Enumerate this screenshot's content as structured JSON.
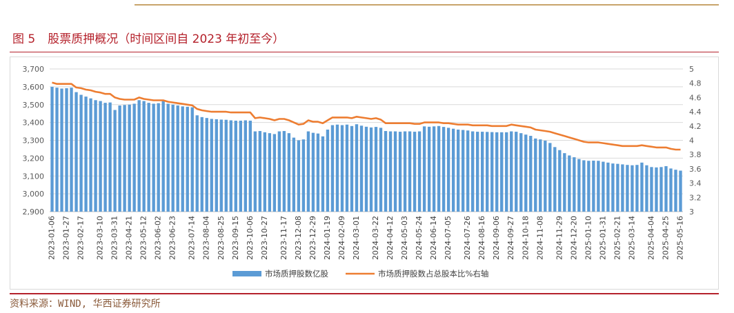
{
  "figure": {
    "number": "图 5",
    "title": "股票质押概况（时间区间自 2023 年初至今）",
    "source": "资料来源：WIND, 华西证券研究所"
  },
  "colors": {
    "bar": "#5b9bd5",
    "line": "#ed7d31",
    "title": "#b4202a",
    "rule": "#c8a46a"
  },
  "chart_data": {
    "type": "bar",
    "title": "",
    "grid": true,
    "legend_position": "bottom",
    "y_left": {
      "min": 2900,
      "max": 3700,
      "ticks": [
        "2,900",
        "3,000",
        "3,100",
        "3,200",
        "3,300",
        "3,400",
        "3,500",
        "3,600",
        "3,700"
      ]
    },
    "y_right": {
      "min": 3,
      "max": 5,
      "ticks": [
        "3",
        "3.2",
        "3.4",
        "3.6",
        "3.8",
        "4",
        "4.2",
        "4.4",
        "4.6",
        "4.8",
        "5"
      ]
    },
    "x_tick_labels": [
      "2023-01-06",
      "2023-01-27",
      "2023-02-17",
      "2023-03-10",
      "2023-03-31",
      "2023-04-21",
      "2023-05-12",
      "2023-06-02",
      "2023-06-23",
      "2023-07-14",
      "2023-08-04",
      "2023-08-25",
      "2023-09-15",
      "2023-10-06",
      "2023-10-27",
      "2023-11-17",
      "2023-12-08",
      "2023-12-29",
      "2024-01-19",
      "2024-02-09",
      "2024-03-01",
      "2024-03-22",
      "2024-04-12",
      "2024-05-03",
      "2024-05-24",
      "2024-06-14",
      "2024-07-05",
      "2024-07-26",
      "2024-08-16",
      "2024-09-06",
      "2024-09-27",
      "2024-10-18",
      "2024-11-08",
      "2024-11-29",
      "2024-12-20",
      "2025-01-10",
      "2025-01-31",
      "2025-02-21",
      "2025-03-14",
      "2025-04-04",
      "2025-04-25",
      "2025-05-16"
    ],
    "series": [
      {
        "name": "市场质押股数亿股",
        "type": "bar",
        "axis": "left",
        "values": [
          3600,
          3595,
          3590,
          3592,
          3595,
          3570,
          3555,
          3545,
          3535,
          3525,
          3520,
          3510,
          3512,
          3470,
          3495,
          3498,
          3500,
          3505,
          3525,
          3520,
          3510,
          3505,
          3508,
          3520,
          3505,
          3500,
          3495,
          3490,
          3488,
          3485,
          3440,
          3430,
          3425,
          3420,
          3418,
          3416,
          3415,
          3412,
          3410,
          3410,
          3412,
          3410,
          3350,
          3352,
          3345,
          3340,
          3335,
          3350,
          3352,
          3340,
          3315,
          3300,
          3305,
          3350,
          3342,
          3338,
          3322,
          3360,
          3385,
          3388,
          3385,
          3388,
          3380,
          3390,
          3382,
          3376,
          3372,
          3375,
          3370,
          3352,
          3350,
          3350,
          3348,
          3350,
          3350,
          3348,
          3350,
          3378,
          3376,
          3378,
          3380,
          3375,
          3370,
          3365,
          3360,
          3358,
          3355,
          3350,
          3348,
          3348,
          3347,
          3346,
          3345,
          3345,
          3345,
          3350,
          3348,
          3340,
          3332,
          3325,
          3310,
          3305,
          3298,
          3285,
          3262,
          3245,
          3228,
          3215,
          3205,
          3195,
          3188,
          3185,
          3186,
          3185,
          3180,
          3175,
          3170,
          3168,
          3165,
          3162,
          3160,
          3162,
          3175,
          3160,
          3150,
          3148,
          3150,
          3155,
          3142,
          3135,
          3130
        ]
      },
      {
        "name": "市场质押股数占总股本比%右轴",
        "type": "line",
        "axis": "right",
        "values": [
          4.81,
          4.79,
          4.79,
          4.79,
          4.79,
          4.74,
          4.73,
          4.71,
          4.7,
          4.68,
          4.67,
          4.65,
          4.65,
          4.6,
          4.58,
          4.57,
          4.57,
          4.57,
          4.6,
          4.58,
          4.57,
          4.56,
          4.56,
          4.56,
          4.54,
          4.53,
          4.52,
          4.51,
          4.5,
          4.49,
          4.44,
          4.42,
          4.41,
          4.4,
          4.4,
          4.4,
          4.4,
          4.39,
          4.39,
          4.39,
          4.39,
          4.39,
          4.31,
          4.32,
          4.31,
          4.3,
          4.28,
          4.3,
          4.3,
          4.28,
          4.25,
          4.22,
          4.23,
          4.28,
          4.26,
          4.26,
          4.24,
          4.28,
          4.32,
          4.32,
          4.32,
          4.32,
          4.31,
          4.33,
          4.32,
          4.31,
          4.3,
          4.31,
          4.29,
          4.24,
          4.24,
          4.24,
          4.24,
          4.24,
          4.24,
          4.23,
          4.23,
          4.25,
          4.25,
          4.25,
          4.25,
          4.24,
          4.24,
          4.23,
          4.22,
          4.22,
          4.22,
          4.21,
          4.21,
          4.21,
          4.21,
          4.2,
          4.2,
          4.2,
          4.2,
          4.22,
          4.21,
          4.2,
          4.19,
          4.18,
          4.15,
          4.14,
          4.13,
          4.12,
          4.1,
          4.08,
          4.06,
          4.04,
          4.02,
          4.0,
          3.98,
          3.97,
          3.97,
          3.97,
          3.96,
          3.95,
          3.94,
          3.93,
          3.92,
          3.92,
          3.92,
          3.92,
          3.93,
          3.92,
          3.91,
          3.9,
          3.9,
          3.9,
          3.88,
          3.87,
          3.87
        ]
      }
    ]
  }
}
